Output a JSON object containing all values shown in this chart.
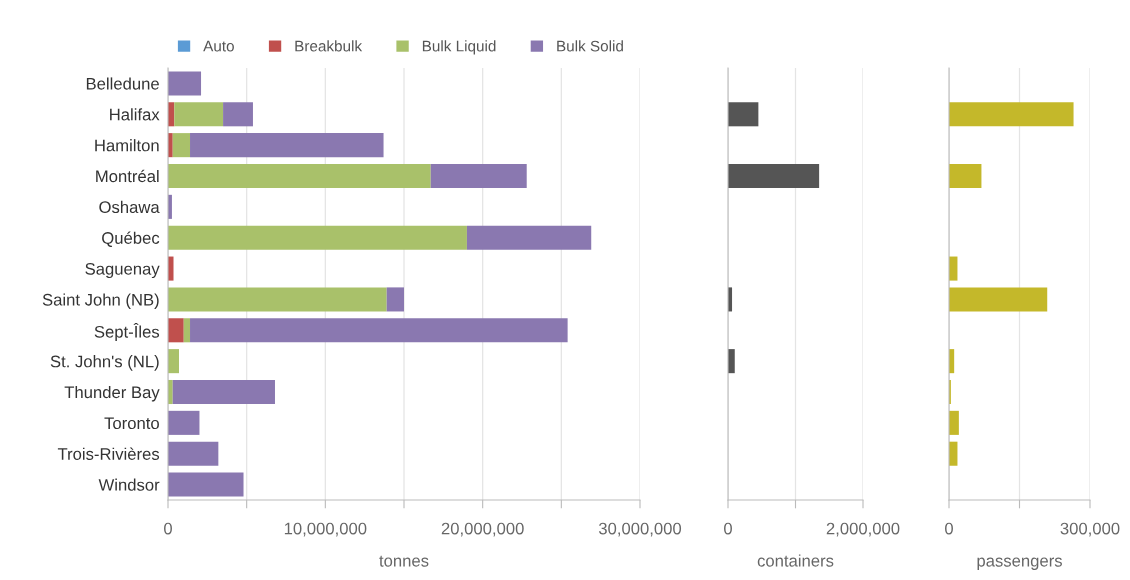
{
  "chart_data": [
    {
      "type": "bar",
      "orientation": "horizontal",
      "stacked": true,
      "xlabel": "tonnes",
      "legend": "top",
      "grid": "x",
      "categories": [
        "Belledune",
        "Halifax",
        "Hamilton",
        "Montréal",
        "Oshawa",
        "Québec",
        "Saguenay",
        "Saint John (NB)",
        "Sept-Îles",
        "St. John's (NL)",
        "Thunder Bay",
        "Toronto",
        "Trois-Rivières",
        "Windsor"
      ],
      "xlim": [
        0,
        30000000
      ],
      "xticks": [
        0,
        {
          "value": 5000000,
          "label": null
        },
        {
          "value": 10000000,
          "label": "10,000,000"
        },
        {
          "value": 15000000,
          "label": null
        },
        {
          "value": 20000000,
          "label": "20,000,000"
        },
        {
          "value": 25000000,
          "label": null
        },
        {
          "value": 30000000,
          "label": "30,000,000"
        }
      ],
      "series": [
        {
          "name": "Auto",
          "color": "#5b9bd5",
          "values": [
            0,
            0,
            0,
            0,
            0,
            0,
            0,
            0,
            0,
            0,
            0,
            0,
            0,
            0
          ]
        },
        {
          "name": "Breakbulk",
          "color": "#c0504d",
          "values": [
            0,
            400000.0,
            300000.0,
            0,
            0,
            0,
            350000.0,
            0,
            1000000.0,
            0,
            0,
            0,
            0,
            0
          ]
        },
        {
          "name": "Bulk Liquid",
          "color": "#a9c16a",
          "values": [
            0,
            3100000.0,
            1100000.0,
            16700000.0,
            0,
            19000000.0,
            0,
            13900000.0,
            400000.0,
            700000.0,
            300000.0,
            0,
            0,
            0
          ]
        },
        {
          "name": "Bulk Solid",
          "color": "#8a78b0",
          "values": [
            2100000.0,
            1900000.0,
            12300000.0,
            6100000.0,
            250000.0,
            7900000.0,
            0,
            1100000.0,
            24000000.0,
            0,
            6500000.0,
            2000000.0,
            3200000.0,
            4800000.0
          ]
        }
      ]
    },
    {
      "type": "bar",
      "orientation": "horizontal",
      "xlabel": "containers",
      "grid": "x",
      "tick_labels": "x",
      "xlim": [
        0,
        2000000
      ],
      "xticks": [
        0,
        {
          "value": 1000000,
          "label": null
        },
        {
          "value": 2000000,
          "label": "2,000,000"
        }
      ],
      "series": [
        {
          "color": "#555555",
          "values": [
            0,
            450000,
            0,
            1350000,
            0,
            0,
            0,
            60000,
            0,
            100000,
            0,
            0,
            0,
            0
          ]
        }
      ]
    },
    {
      "type": "bar",
      "orientation": "horizontal",
      "xlabel": "passengers",
      "grid": "x",
      "tick_labels": "x",
      "xlim": [
        0,
        300000
      ],
      "xticks": [
        0,
        {
          "value": 150000,
          "label": null
        },
        {
          "value": 300000,
          "label": "300,000"
        }
      ],
      "series": [
        {
          "color": "#c4b82a",
          "values": [
            0,
            265000,
            0,
            69000,
            0,
            0,
            18000,
            209000,
            0,
            11000,
            4000,
            21000,
            18000,
            0
          ]
        }
      ]
    }
  ]
}
